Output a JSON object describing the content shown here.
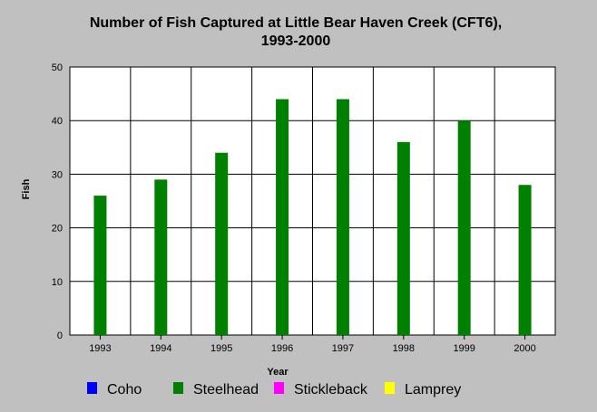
{
  "chart_data": {
    "type": "bar",
    "title_lines": [
      "Number of Fish Captured at Little Bear Haven Creek (CFT6),",
      "1993-2000"
    ],
    "xlabel": "Year",
    "ylabel": "Fish",
    "ylim": [
      0,
      50
    ],
    "yticks": [
      0,
      10,
      20,
      30,
      40,
      50
    ],
    "grid": true,
    "categories": [
      "1993",
      "1994",
      "1995",
      "1996",
      "1997",
      "1998",
      "1999",
      "2000"
    ],
    "series": [
      {
        "name": "Steelhead",
        "color": "#008000",
        "values": [
          26,
          29,
          34,
          44,
          44,
          36,
          40,
          28
        ]
      }
    ],
    "legend": {
      "placement": "bottom",
      "entries": [
        {
          "name": "Coho",
          "color": "#0000ff"
        },
        {
          "name": "Steelhead",
          "color": "#008000"
        },
        {
          "name": "Stickleback",
          "color": "#ff00ff"
        },
        {
          "name": "Lamprey",
          "color": "#ffff00"
        }
      ]
    }
  }
}
